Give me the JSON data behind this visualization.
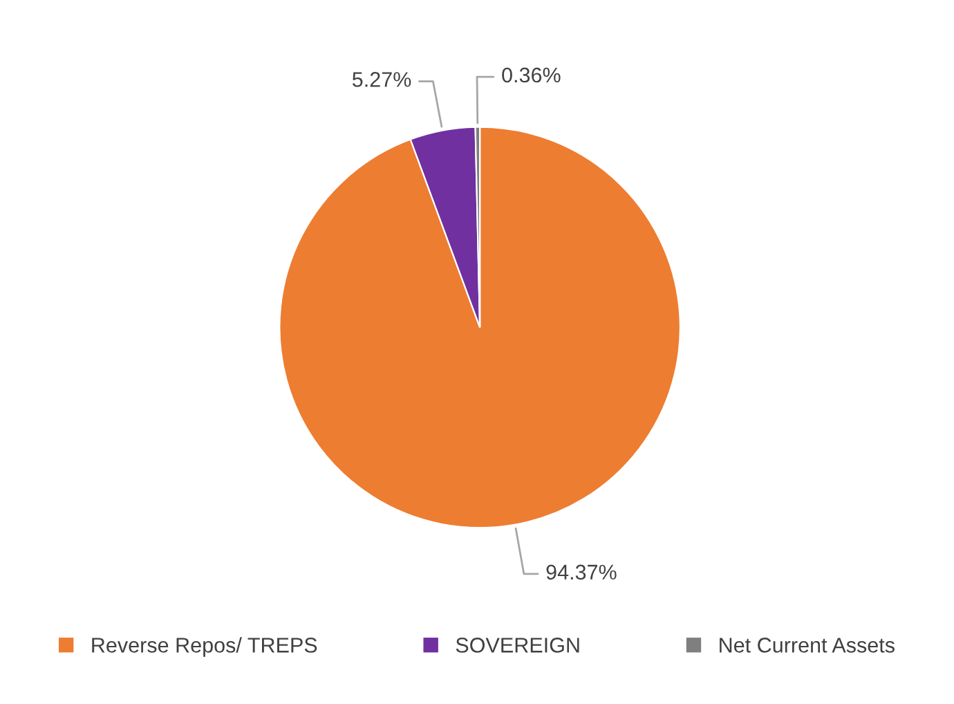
{
  "chart_data": {
    "type": "pie",
    "categories": [
      "Reverse Repos/ TREPS",
      "SOVEREIGN",
      "Net Current Assets"
    ],
    "values": [
      94.37,
      5.27,
      0.36
    ],
    "colors": [
      "#ed7d31",
      "#7030a0",
      "#7f7f7f"
    ],
    "value_labels": [
      "94.37%",
      "5.27%",
      "0.36%"
    ],
    "legend": "bottom"
  }
}
